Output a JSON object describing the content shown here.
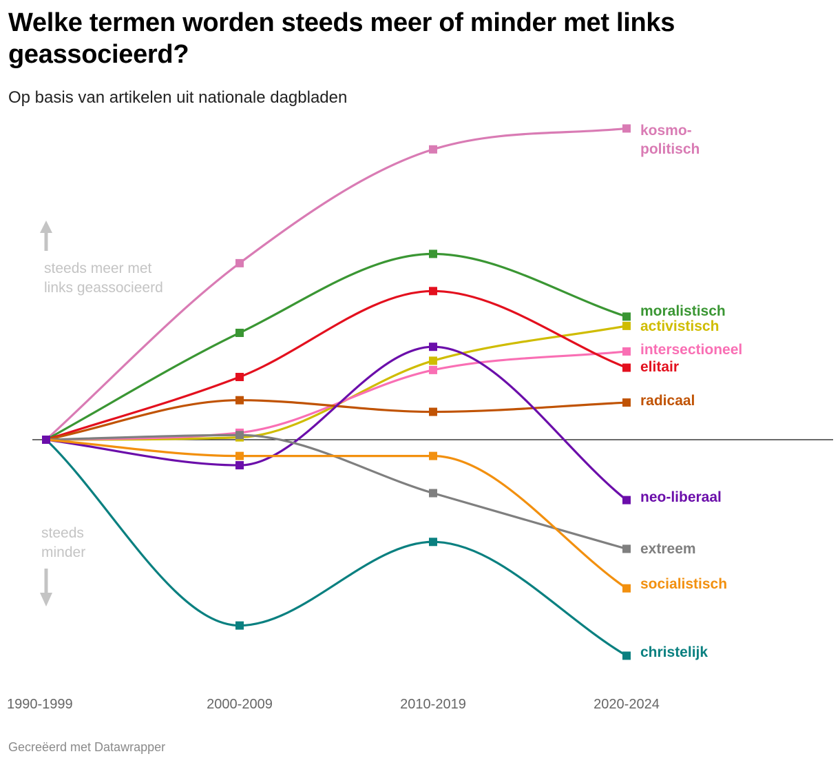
{
  "title": "Welke termen worden steeds meer of minder met links geassocieerd?",
  "subtitle": "Op basis van artikelen uit nationale dagbladen",
  "footer": "Gecreëerd met Datawrapper",
  "chart_data": {
    "type": "line",
    "categories": [
      "1990-1999",
      "2000-2009",
      "2010-2019",
      "2020-2024"
    ],
    "ylim": [
      -1,
      1.35
    ],
    "zero_line": true,
    "grid": false,
    "legend": "direct labels at line ends (right)",
    "annotations": {
      "up": [
        "steeds meer met",
        "links geassocieerd"
      ],
      "down": [
        "steeds",
        "minder"
      ]
    },
    "series": [
      {
        "name": "kosmo-\npolitisch",
        "label_lines": [
          "kosmo-",
          "politisch"
        ],
        "color": "#d97bb4",
        "values": [
          0,
          0.76,
          1.25,
          1.34
        ]
      },
      {
        "name": "moralistisch",
        "label_lines": [
          "moralistisch"
        ],
        "color": "#3a9633",
        "values": [
          0,
          0.46,
          0.8,
          0.53
        ]
      },
      {
        "name": "activistisch",
        "label_lines": [
          "activistisch"
        ],
        "color": "#cfbc00",
        "values": [
          0,
          0.01,
          0.34,
          0.49
        ]
      },
      {
        "name": "intersectioneel",
        "label_lines": [
          "intersectioneel"
        ],
        "color": "#f96fb4",
        "values": [
          0,
          0.03,
          0.3,
          0.38
        ]
      },
      {
        "name": "elitair",
        "label_lines": [
          "elitair"
        ],
        "color": "#e3101e",
        "values": [
          0,
          0.27,
          0.64,
          0.31
        ]
      },
      {
        "name": "radicaal",
        "label_lines": [
          "radicaal"
        ],
        "color": "#c05304",
        "values": [
          0,
          0.17,
          0.12,
          0.16
        ]
      },
      {
        "name": "neo-liberaal",
        "label_lines": [
          "neo-liberaal"
        ],
        "color": "#6b0eaa",
        "values": [
          0,
          -0.11,
          0.4,
          -0.26
        ]
      },
      {
        "name": "extreem",
        "label_lines": [
          "extreem"
        ],
        "color": "#7f7f7f",
        "values": [
          0,
          0.02,
          -0.23,
          -0.47
        ]
      },
      {
        "name": "socialistisch",
        "label_lines": [
          "socialistisch"
        ],
        "color": "#f2900f",
        "values": [
          0,
          -0.07,
          -0.07,
          -0.64
        ]
      },
      {
        "name": "christelijk",
        "label_lines": [
          "christelijk"
        ],
        "color": "#0a8080",
        "values": [
          0,
          -0.8,
          -0.44,
          -0.93
        ]
      }
    ]
  }
}
